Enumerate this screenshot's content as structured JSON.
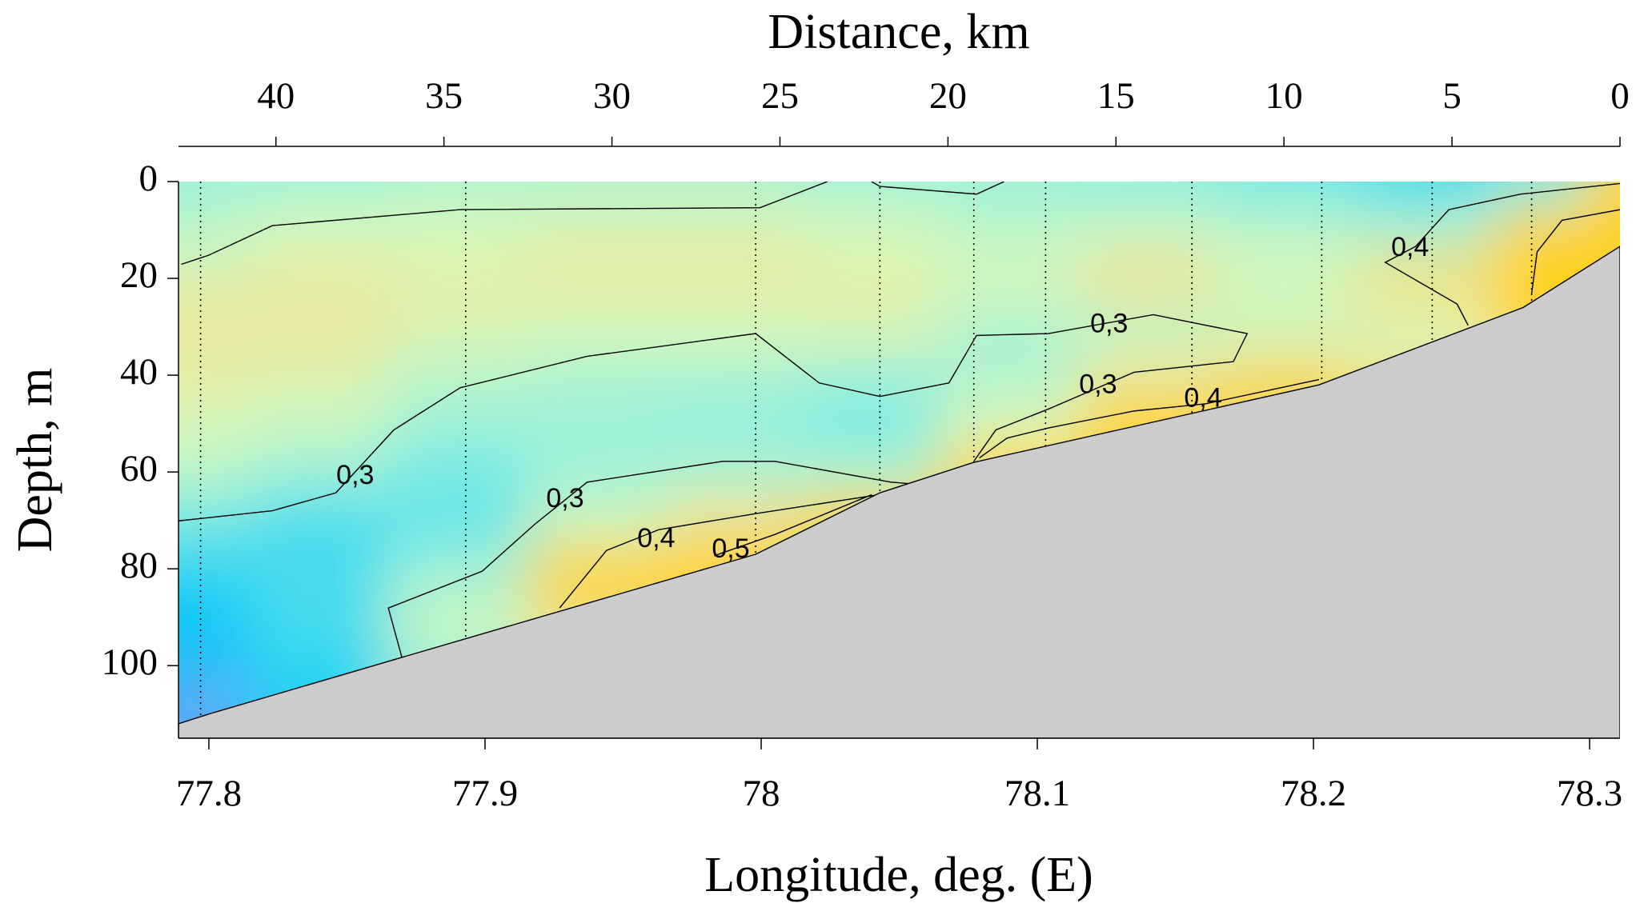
{
  "chart_data": {
    "type": "contour",
    "title": "Distance, km",
    "xlabel": "Longitude, deg. (E)",
    "ylabel": "Depth, m",
    "xlim": [
      77.789,
      78.311
    ],
    "xticks": [
      77.8,
      77.9,
      78,
      78.1,
      78.2,
      78.3
    ],
    "x2lim": [
      42.9,
      0
    ],
    "x2ticks": [
      40,
      35,
      30,
      25,
      20,
      15,
      10,
      5,
      0
    ],
    "ylim": [
      0,
      115
    ],
    "yticks": [
      0,
      20,
      40,
      60,
      80,
      100
    ],
    "y_inverted": true,
    "colormap": [
      {
        "value": 0.18,
        "color": "#7f9cf5"
      },
      {
        "value": 0.22,
        "color": "#00c8f8"
      },
      {
        "value": 0.28,
        "color": "#8ef0e0"
      },
      {
        "value": 0.33,
        "color": "#d8f8b8"
      },
      {
        "value": 0.37,
        "color": "#f0e090"
      },
      {
        "value": 0.4,
        "color": "#ffd21e"
      }
    ],
    "field": {
      "x": [
        77.79,
        77.84,
        77.89,
        77.94,
        77.99,
        78.04,
        78.09,
        78.14,
        78.19,
        78.24,
        78.29,
        78.31
      ],
      "y": [
        0,
        10,
        20,
        30,
        40,
        50,
        60,
        70,
        80,
        90,
        100,
        110
      ],
      "z": [
        [
          0.29,
          0.29,
          0.3,
          0.3,
          0.3,
          0.29,
          0.29,
          0.28,
          0.27,
          0.25,
          0.27,
          0.4
        ],
        [
          0.31,
          0.33,
          0.33,
          0.34,
          0.34,
          0.33,
          0.31,
          0.32,
          0.31,
          0.3,
          0.4,
          0.42
        ],
        [
          0.34,
          0.35,
          0.34,
          0.35,
          0.35,
          0.34,
          0.33,
          0.37,
          0.33,
          0.38,
          0.42,
          0.42
        ],
        [
          0.36,
          0.36,
          0.34,
          0.33,
          0.33,
          0.34,
          0.3,
          0.31,
          0.32,
          0.33,
          0.41,
          0.41
        ],
        [
          0.35,
          0.34,
          0.31,
          0.3,
          0.3,
          0.29,
          0.3,
          0.36,
          0.38,
          0.36,
          0.4,
          0.4
        ],
        [
          0.33,
          0.32,
          0.29,
          0.29,
          0.28,
          0.27,
          0.33,
          0.4,
          0.4,
          0.38,
          0.4,
          0.4
        ],
        [
          0.31,
          0.29,
          0.27,
          0.29,
          0.3,
          0.3,
          0.4,
          0.4,
          0.4,
          0.38,
          0.4,
          0.4
        ],
        [
          0.27,
          0.25,
          0.26,
          0.32,
          0.37,
          0.42,
          0.4,
          0.4,
          0.4,
          0.38,
          0.4,
          0.4
        ],
        [
          0.24,
          0.25,
          0.29,
          0.4,
          0.42,
          0.42,
          0.4,
          0.4,
          0.4,
          0.38,
          0.4,
          0.4
        ],
        [
          0.22,
          0.25,
          0.32,
          0.38,
          0.4,
          0.4,
          0.4,
          0.4,
          0.4,
          0.38,
          0.4,
          0.4
        ],
        [
          0.21,
          0.24,
          0.3,
          0.35,
          0.38,
          0.38,
          0.38,
          0.38,
          0.38,
          0.38,
          0.38,
          0.38
        ],
        [
          0.19,
          0.23,
          0.28,
          0.34,
          0.38,
          0.38,
          0.38,
          0.38,
          0.38,
          0.38,
          0.38,
          0.38
        ]
      ]
    },
    "contours": [
      {
        "x": [
          77.79,
          77.8,
          77.823,
          77.891,
          77.9996,
          78.024
        ],
        "y": [
          17.1,
          15.2,
          9.1,
          5.8,
          5.4,
          0
        ]
      },
      {
        "x": [
          78.04,
          78.043,
          78.078,
          78.088
        ],
        "y": [
          0,
          1,
          2.6,
          0
        ]
      },
      {
        "x": [
          77.789,
          77.823,
          77.846,
          77.867,
          77.891,
          77.937,
          77.998,
          78.021,
          78.043,
          78.068,
          78.078,
          78.104,
          78.142,
          78.176,
          78.171,
          78.135,
          78.104,
          78.085,
          78.077
        ],
        "y": [
          70.1,
          68,
          64.3,
          51.3,
          42.6,
          36.1,
          31.4,
          41.6,
          44.4,
          41.6,
          31.8,
          31.4,
          27.5,
          31.4,
          37.2,
          39.4,
          47,
          51.3,
          57.8
        ]
      },
      {
        "x": [
          77.87,
          77.865,
          77.899,
          77.918,
          77.937,
          77.986,
          78.005,
          78.047,
          78.058
        ],
        "y": [
          98.5,
          88.1,
          80.5,
          70.8,
          62.1,
          57.8,
          57.8,
          62.1,
          62.6
        ]
      },
      {
        "x": [
          77.927,
          77.944,
          77.963,
          77.998,
          78.047
        ],
        "y": [
          88.1,
          76.2,
          71.9,
          68.6,
          64.3
        ]
      },
      {
        "x": [
          77.983,
          78.005,
          78.04
        ],
        "y": [
          77.3,
          72.9,
          64.7
        ]
      },
      {
        "x": [
          78.256,
          78.252,
          78.226,
          78.237,
          78.249,
          78.275,
          78.311
        ],
        "y": [
          29.7,
          25.3,
          16.7,
          13.4,
          5.8,
          2.6,
          0.4
        ]
      },
      {
        "x": [
          78.079,
          78.089,
          78.104,
          78.135,
          78.161,
          78.202
        ],
        "y": [
          57.1,
          53,
          50.9,
          47.4,
          45.9,
          40.9
        ]
      },
      {
        "x": [
          78.311,
          78.29,
          78.281,
          78.279
        ],
        "y": [
          5.8,
          8,
          14.5,
          23.2
        ]
      }
    ],
    "annotations": [
      {
        "text": "0,3",
        "x": 77.853,
        "y": 61
      },
      {
        "text": "0,3",
        "x": 77.929,
        "y": 65.8
      },
      {
        "text": "0,4",
        "x": 77.962,
        "y": 74
      },
      {
        "text": "0,5",
        "x": 77.989,
        "y": 76.2
      },
      {
        "text": "0,4",
        "x": 78.235,
        "y": 13.9
      },
      {
        "text": "0,3",
        "x": 78.126,
        "y": 29.7
      },
      {
        "text": "0,3",
        "x": 78.122,
        "y": 42.2
      },
      {
        "text": "0,4",
        "x": 78.16,
        "y": 45
      }
    ],
    "stations": [
      77.797,
      77.893,
      77.998,
      78.043,
      78.077,
      78.103,
      78.156,
      78.203,
      78.243,
      78.279
    ],
    "bottom": {
      "x": [
        77.789,
        77.8,
        77.892,
        77.998,
        78.043,
        78.077,
        78.202,
        78.276,
        78.311
      ],
      "y": [
        112,
        110,
        94.6,
        77,
        64.3,
        58,
        42,
        26,
        13.4
      ],
      "color": "#cccccc"
    }
  }
}
